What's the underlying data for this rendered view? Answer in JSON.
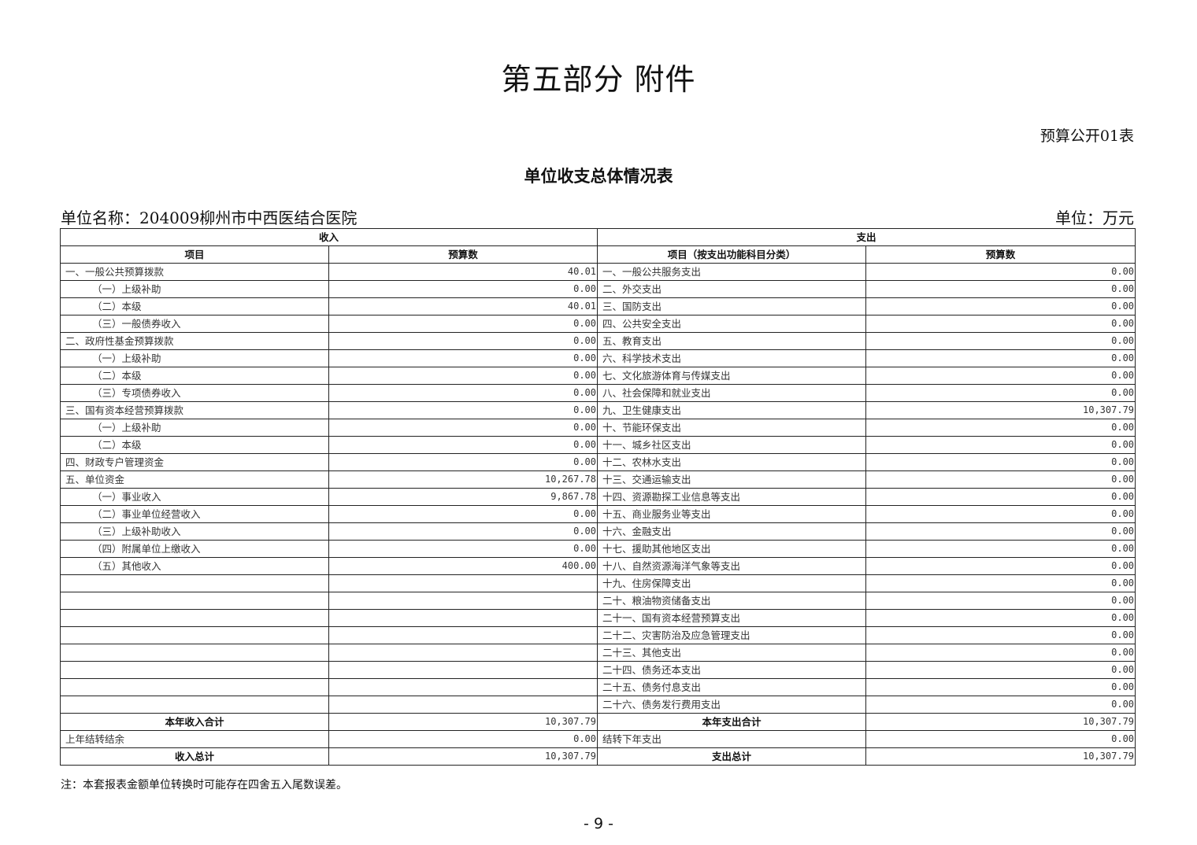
{
  "title": "第五部分  附件",
  "table_no": "预算公开01表",
  "subtitle": "单位收支总体情况表",
  "unit_name": "单位名称：204009柳州市中西医结合医院",
  "unit": "单位：万元",
  "headers": {
    "income": "收入",
    "expense": "支出",
    "income_item": "项目",
    "income_amount": "预算数",
    "expense_item": "项目（按支出功能科目分类）",
    "expense_amount": "预算数"
  },
  "rows": [
    {
      "in_label": "一、一般公共预算拨款",
      "in_indent": false,
      "in_value": "40.01",
      "out_label": "一、一般公共服务支出",
      "out_value": "0.00"
    },
    {
      "in_label": "（一）上级补助",
      "in_indent": true,
      "in_value": "0.00",
      "out_label": "二、外交支出",
      "out_value": "0.00"
    },
    {
      "in_label": "（二）本级",
      "in_indent": true,
      "in_value": "40.01",
      "out_label": "三、国防支出",
      "out_value": "0.00"
    },
    {
      "in_label": "（三）一般债券收入",
      "in_indent": true,
      "in_value": "0.00",
      "out_label": "四、公共安全支出",
      "out_value": "0.00"
    },
    {
      "in_label": "二、政府性基金预算拨款",
      "in_indent": false,
      "in_value": "0.00",
      "out_label": "五、教育支出",
      "out_value": "0.00"
    },
    {
      "in_label": "（一）上级补助",
      "in_indent": true,
      "in_value": "0.00",
      "out_label": "六、科学技术支出",
      "out_value": "0.00"
    },
    {
      "in_label": "（二）本级",
      "in_indent": true,
      "in_value": "0.00",
      "out_label": "七、文化旅游体育与传媒支出",
      "out_value": "0.00"
    },
    {
      "in_label": "（三）专项债券收入",
      "in_indent": true,
      "in_value": "0.00",
      "out_label": "八、社会保障和就业支出",
      "out_value": "0.00"
    },
    {
      "in_label": "三、国有资本经营预算拨款",
      "in_indent": false,
      "in_value": "0.00",
      "out_label": "九、卫生健康支出",
      "out_value": "10,307.79"
    },
    {
      "in_label": "（一）上级补助",
      "in_indent": true,
      "in_value": "0.00",
      "out_label": "十、节能环保支出",
      "out_value": "0.00"
    },
    {
      "in_label": "（二）本级",
      "in_indent": true,
      "in_value": "0.00",
      "out_label": "十一、城乡社区支出",
      "out_value": "0.00"
    },
    {
      "in_label": "四、财政专户管理资金",
      "in_indent": false,
      "in_value": "0.00",
      "out_label": "十二、农林水支出",
      "out_value": "0.00"
    },
    {
      "in_label": "五、单位资金",
      "in_indent": false,
      "in_value": "10,267.78",
      "out_label": "十三、交通运输支出",
      "out_value": "0.00"
    },
    {
      "in_label": "（一）事业收入",
      "in_indent": true,
      "in_value": "9,867.78",
      "out_label": "十四、资源勘探工业信息等支出",
      "out_value": "0.00"
    },
    {
      "in_label": "（二）事业单位经营收入",
      "in_indent": true,
      "in_value": "0.00",
      "out_label": "十五、商业服务业等支出",
      "out_value": "0.00"
    },
    {
      "in_label": "（三）上级补助收入",
      "in_indent": true,
      "in_value": "0.00",
      "out_label": "十六、金融支出",
      "out_value": "0.00"
    },
    {
      "in_label": "（四）附属单位上缴收入",
      "in_indent": true,
      "in_value": "0.00",
      "out_label": "十七、援助其他地区支出",
      "out_value": "0.00"
    },
    {
      "in_label": "（五）其他收入",
      "in_indent": true,
      "in_value": "400.00",
      "out_label": "十八、自然资源海洋气象等支出",
      "out_value": "0.00"
    },
    {
      "in_label": "",
      "in_indent": false,
      "in_value": "",
      "out_label": "十九、住房保障支出",
      "out_value": "0.00"
    },
    {
      "in_label": "",
      "in_indent": false,
      "in_value": "",
      "out_label": "二十、粮油物资储备支出",
      "out_value": "0.00"
    },
    {
      "in_label": "",
      "in_indent": false,
      "in_value": "",
      "out_label": "二十一、国有资本经营预算支出",
      "out_value": "0.00"
    },
    {
      "in_label": "",
      "in_indent": false,
      "in_value": "",
      "out_label": "二十二、灾害防治及应急管理支出",
      "out_value": "0.00"
    },
    {
      "in_label": "",
      "in_indent": false,
      "in_value": "",
      "out_label": "二十三、其他支出",
      "out_value": "0.00"
    },
    {
      "in_label": "",
      "in_indent": false,
      "in_value": "",
      "out_label": "二十四、债务还本支出",
      "out_value": "0.00"
    },
    {
      "in_label": "",
      "in_indent": false,
      "in_value": "",
      "out_label": "二十五、债务付息支出",
      "out_value": "0.00"
    },
    {
      "in_label": "",
      "in_indent": false,
      "in_value": "",
      "out_label": "二十六、债务发行费用支出",
      "out_value": "0.00"
    }
  ],
  "totals": [
    {
      "in_label": "本年收入合计",
      "in_bold": true,
      "in_value": "10,307.79",
      "out_label": "本年支出合计",
      "out_bold": true,
      "out_value": "10,307.79"
    },
    {
      "in_label": "上年结转结余",
      "in_bold": false,
      "in_value": "0.00",
      "out_label": "结转下年支出",
      "out_bold": false,
      "out_value": "0.00"
    },
    {
      "in_label": "收入总计",
      "in_bold": true,
      "in_value": "10,307.79",
      "out_label": "支出总计",
      "out_bold": true,
      "out_value": "10,307.79"
    }
  ],
  "note": "注：本套报表金额单位转换时可能存在四舍五入尾数误差。",
  "page_number": "- 9 -"
}
